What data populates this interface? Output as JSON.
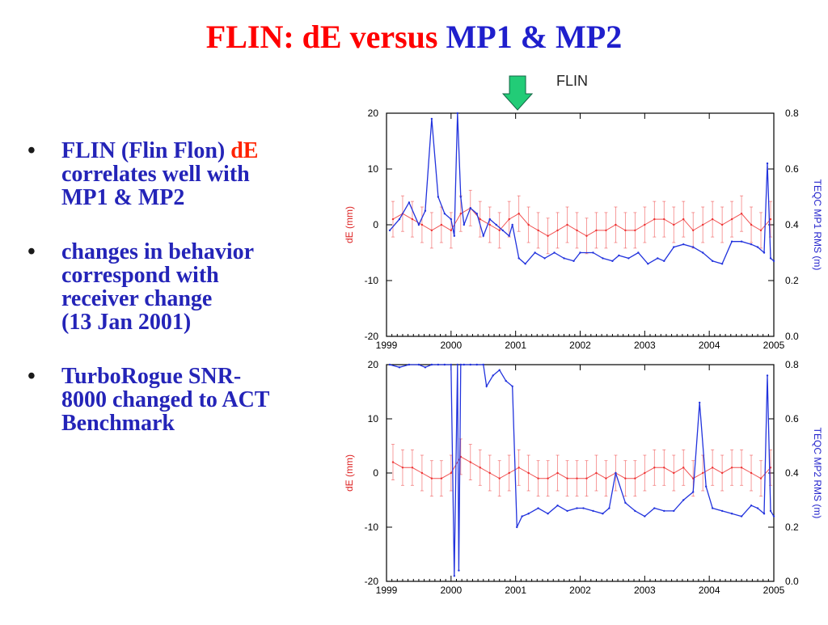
{
  "slide": {
    "title_part1": "FLIN:  dE versus ",
    "title_part2": "MP1 & MP2",
    "title_color_red": "#ff0000",
    "title_color_blue": "#1f1fcc"
  },
  "bullets": [
    {
      "dot": "•",
      "lines": [
        [
          "FLIN (Flin Flon) ",
          "dE"
        ],
        [
          "correlates well with"
        ],
        [
          "MP1 & MP2"
        ]
      ]
    },
    {
      "dot": "•",
      "lines": [
        [
          "changes in behavior"
        ],
        [
          "correspond with"
        ],
        [
          "receiver change"
        ],
        [
          "(13 Jan 2001)"
        ]
      ]
    },
    {
      "dot": "•",
      "lines": [
        [
          "TurboRogue SNR-"
        ],
        [
          "8000 changed to ACT"
        ],
        [
          "Benchmark"
        ]
      ]
    }
  ],
  "annotation": {
    "station_label": "FLIN",
    "arrow_marks_year": 2001.03,
    "arrow_color": "#22cc77"
  },
  "chart_data": [
    {
      "type": "line",
      "xlim": [
        1999,
        2005
      ],
      "x_ticks": [
        "1999",
        "2000",
        "2001",
        "2002",
        "2003",
        "2004",
        "2005"
      ],
      "left_axis": {
        "label": "dE (mm)",
        "ylim": [
          -20,
          20
        ],
        "ticks": [
          "20",
          "10",
          "0",
          "-10",
          "-20"
        ],
        "color": "#dd2222"
      },
      "right_axis": {
        "label": "TEQC MP1 RMS (m)",
        "ylim": [
          0.0,
          0.8
        ],
        "ticks": [
          "0.8",
          "0.6",
          "0.4",
          "0.2",
          "0.0"
        ],
        "color": "#2222cc"
      },
      "series": [
        {
          "axis": "left",
          "color": "#ee3333",
          "error_bars": true,
          "x": [
            1999.1,
            1999.25,
            1999.4,
            1999.55,
            1999.7,
            1999.85,
            2000.0,
            2000.15,
            2000.3,
            2000.45,
            2000.6,
            2000.75,
            2000.9,
            2001.05,
            2001.2,
            2001.35,
            2001.5,
            2001.65,
            2001.8,
            2001.95,
            2002.1,
            2002.25,
            2002.4,
            2002.55,
            2002.7,
            2002.85,
            2003.0,
            2003.15,
            2003.3,
            2003.45,
            2003.6,
            2003.75,
            2003.9,
            2004.05,
            2004.2,
            2004.35,
            2004.5,
            2004.65,
            2004.8,
            2004.95
          ],
          "y": [
            1,
            2,
            1,
            0,
            -1,
            0,
            -1,
            2,
            3,
            1,
            0,
            -1,
            1,
            2,
            0,
            -1,
            -2,
            -1,
            0,
            -1,
            -2,
            -1,
            -1,
            0,
            -1,
            -1,
            0,
            1,
            1,
            0,
            1,
            -1,
            0,
            1,
            0,
            1,
            2,
            0,
            -1,
            1
          ]
        },
        {
          "axis": "right",
          "color": "#2233dd",
          "x": [
            1999.05,
            1999.2,
            1999.35,
            1999.5,
            1999.6,
            1999.7,
            1999.8,
            1999.9,
            2000.0,
            2000.05,
            2000.1,
            2000.15,
            2000.2,
            2000.3,
            2000.4,
            2000.5,
            2000.6,
            2000.7,
            2000.8,
            2000.9,
            2000.95,
            2001.05,
            2001.15,
            2001.3,
            2001.45,
            2001.6,
            2001.75,
            2001.9,
            2002.0,
            2002.2,
            2002.35,
            2002.5,
            2002.6,
            2002.75,
            2002.9,
            2003.05,
            2003.2,
            2003.3,
            2003.45,
            2003.6,
            2003.75,
            2003.9,
            2004.05,
            2004.2,
            2004.35,
            2004.5,
            2004.65,
            2004.75,
            2004.85,
            2004.9,
            2004.95,
            2005.0
          ],
          "y": [
            0.38,
            0.42,
            0.48,
            0.4,
            0.45,
            0.78,
            0.5,
            0.44,
            0.42,
            0.36,
            0.8,
            0.5,
            0.4,
            0.46,
            0.44,
            0.36,
            0.42,
            0.4,
            0.38,
            0.36,
            0.4,
            0.28,
            0.26,
            0.3,
            0.28,
            0.3,
            0.28,
            0.27,
            0.3,
            0.3,
            0.28,
            0.27,
            0.29,
            0.28,
            0.3,
            0.26,
            0.28,
            0.27,
            0.32,
            0.33,
            0.32,
            0.3,
            0.27,
            0.26,
            0.34,
            0.34,
            0.33,
            0.32,
            0.3,
            0.62,
            0.28,
            0.27
          ]
        }
      ]
    },
    {
      "type": "line",
      "xlim": [
        1999,
        2005
      ],
      "x_ticks": [
        "1999",
        "2000",
        "2001",
        "2002",
        "2003",
        "2004",
        "2005"
      ],
      "left_axis": {
        "label": "dE (mm)",
        "ylim": [
          -20,
          20
        ],
        "ticks": [
          "20",
          "10",
          "0",
          "-10",
          "-20"
        ],
        "color": "#dd2222"
      },
      "right_axis": {
        "label": "TEQC MP2 RMS (m)",
        "ylim": [
          0.0,
          0.8
        ],
        "ticks": [
          "0.8",
          "0.6",
          "0.4",
          "0.2",
          "0.0"
        ],
        "color": "#2222cc"
      },
      "series": [
        {
          "axis": "left",
          "color": "#ee3333",
          "error_bars": true,
          "x": [
            1999.1,
            1999.25,
            1999.4,
            1999.55,
            1999.7,
            1999.85,
            2000.0,
            2000.15,
            2000.3,
            2000.45,
            2000.6,
            2000.75,
            2000.9,
            2001.05,
            2001.2,
            2001.35,
            2001.5,
            2001.65,
            2001.8,
            2001.95,
            2002.1,
            2002.25,
            2002.4,
            2002.55,
            2002.7,
            2002.85,
            2003.0,
            2003.15,
            2003.3,
            2003.45,
            2003.6,
            2003.75,
            2003.9,
            2004.05,
            2004.2,
            2004.35,
            2004.5,
            2004.65,
            2004.8,
            2004.95
          ],
          "y": [
            2,
            1,
            1,
            0,
            -1,
            -1,
            0,
            3,
            2,
            1,
            0,
            -1,
            0,
            1,
            0,
            -1,
            -1,
            0,
            -1,
            -1,
            -1,
            0,
            -1,
            0,
            -1,
            -1,
            0,
            1,
            1,
            0,
            1,
            -1,
            0,
            1,
            0,
            1,
            1,
            0,
            -1,
            1
          ]
        },
        {
          "axis": "right",
          "color": "#2233dd",
          "x": [
            1999.05,
            1999.2,
            1999.35,
            1999.5,
            1999.6,
            1999.7,
            1999.8,
            1999.9,
            2000.0,
            2000.05,
            2000.1,
            2000.12,
            2000.15,
            2000.2,
            2000.3,
            2000.4,
            2000.5,
            2000.55,
            2000.65,
            2000.75,
            2000.85,
            2000.95,
            2001.02,
            2001.1,
            2001.2,
            2001.35,
            2001.5,
            2001.65,
            2001.8,
            2001.95,
            2002.05,
            2002.2,
            2002.35,
            2002.45,
            2002.55,
            2002.7,
            2002.85,
            2003.0,
            2003.15,
            2003.3,
            2003.45,
            2003.6,
            2003.75,
            2003.85,
            2003.95,
            2004.05,
            2004.2,
            2004.35,
            2004.5,
            2004.65,
            2004.75,
            2004.85,
            2004.9,
            2004.95,
            2005.0
          ],
          "y": [
            0.8,
            0.79,
            0.8,
            0.8,
            0.79,
            0.8,
            0.8,
            0.8,
            0.8,
            0.02,
            0.8,
            0.04,
            0.8,
            0.8,
            0.8,
            0.8,
            0.8,
            0.72,
            0.76,
            0.78,
            0.74,
            0.72,
            0.2,
            0.24,
            0.25,
            0.27,
            0.25,
            0.28,
            0.26,
            0.27,
            0.27,
            0.26,
            0.25,
            0.27,
            0.4,
            0.29,
            0.26,
            0.24,
            0.27,
            0.26,
            0.26,
            0.3,
            0.33,
            0.66,
            0.35,
            0.27,
            0.26,
            0.25,
            0.24,
            0.28,
            0.27,
            0.25,
            0.76,
            0.26,
            0.24
          ]
        }
      ]
    }
  ]
}
